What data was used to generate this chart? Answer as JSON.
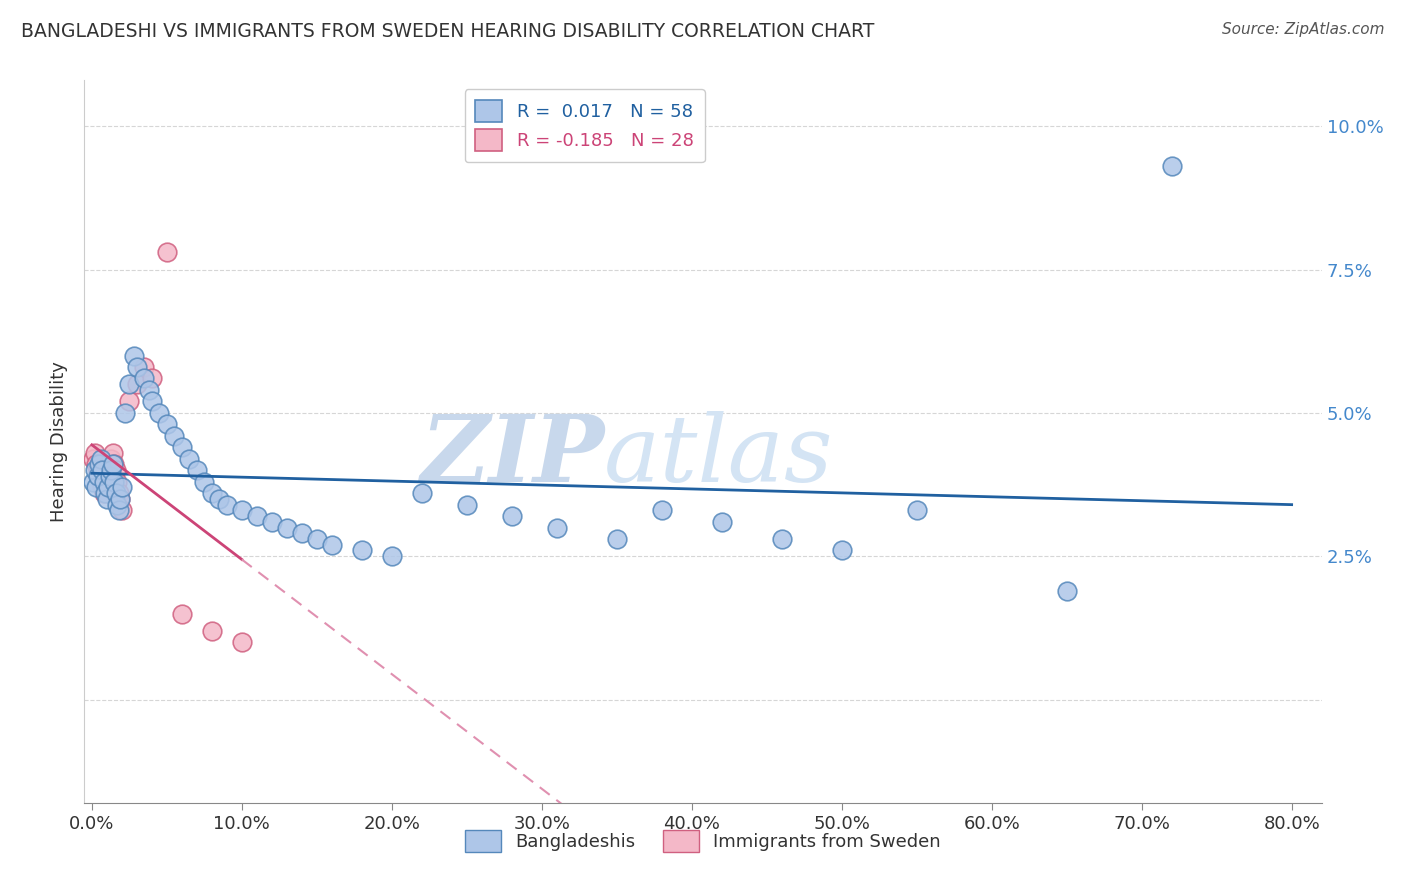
{
  "title": "BANGLADESHI VS IMMIGRANTS FROM SWEDEN HEARING DISABILITY CORRELATION CHART",
  "source": "Source: ZipAtlas.com",
  "ylabel": "Hearing Disability",
  "ytick_vals": [
    0.0,
    0.025,
    0.05,
    0.075,
    0.1
  ],
  "ytick_labels": [
    "",
    "2.5%",
    "5.0%",
    "7.5%",
    "10.0%"
  ],
  "xtick_vals": [
    0.0,
    0.1,
    0.2,
    0.3,
    0.4,
    0.5,
    0.6,
    0.7,
    0.8
  ],
  "xtick_labels": [
    "0.0%",
    "10.0%",
    "20.0%",
    "30.0%",
    "40.0%",
    "50.0%",
    "60.0%",
    "70.0%",
    "80.0%"
  ],
  "xlim": [
    -0.005,
    0.82
  ],
  "ylim": [
    -0.018,
    0.108
  ],
  "blue_color": "#aec6e8",
  "pink_color": "#f4b8c8",
  "blue_edge_color": "#5588bb",
  "pink_edge_color": "#d06080",
  "blue_line_color": "#2060a0",
  "pink_line_solid_color": "#cc4477",
  "pink_line_dash_color": "#e090b0",
  "watermark_zip": "ZIP",
  "watermark_atlas": "atlas",
  "watermark_color": "#dce8f5",
  "background_color": "#ffffff",
  "blue_scatter_x": [
    0.001,
    0.002,
    0.003,
    0.004,
    0.005,
    0.006,
    0.007,
    0.008,
    0.009,
    0.01,
    0.011,
    0.012,
    0.013,
    0.014,
    0.015,
    0.016,
    0.017,
    0.018,
    0.019,
    0.02,
    0.022,
    0.025,
    0.028,
    0.03,
    0.035,
    0.038,
    0.04,
    0.045,
    0.05,
    0.055,
    0.06,
    0.065,
    0.07,
    0.075,
    0.08,
    0.085,
    0.09,
    0.1,
    0.11,
    0.12,
    0.13,
    0.14,
    0.15,
    0.16,
    0.18,
    0.2,
    0.22,
    0.25,
    0.28,
    0.31,
    0.35,
    0.38,
    0.42,
    0.46,
    0.5,
    0.55,
    0.65,
    0.72
  ],
  "blue_scatter_y": [
    0.038,
    0.04,
    0.037,
    0.039,
    0.041,
    0.042,
    0.04,
    0.038,
    0.036,
    0.035,
    0.037,
    0.039,
    0.04,
    0.041,
    0.038,
    0.036,
    0.034,
    0.033,
    0.035,
    0.037,
    0.05,
    0.055,
    0.06,
    0.058,
    0.056,
    0.054,
    0.052,
    0.05,
    0.048,
    0.046,
    0.044,
    0.042,
    0.04,
    0.038,
    0.036,
    0.035,
    0.034,
    0.033,
    0.032,
    0.031,
    0.03,
    0.029,
    0.028,
    0.027,
    0.026,
    0.025,
    0.036,
    0.034,
    0.032,
    0.03,
    0.028,
    0.033,
    0.031,
    0.028,
    0.026,
    0.033,
    0.019,
    0.093
  ],
  "pink_scatter_x": [
    0.001,
    0.002,
    0.003,
    0.004,
    0.005,
    0.006,
    0.007,
    0.008,
    0.009,
    0.01,
    0.011,
    0.012,
    0.013,
    0.014,
    0.015,
    0.016,
    0.017,
    0.018,
    0.019,
    0.02,
    0.025,
    0.03,
    0.035,
    0.04,
    0.05,
    0.06,
    0.08,
    0.1
  ],
  "pink_scatter_y": [
    0.042,
    0.043,
    0.041,
    0.04,
    0.039,
    0.038,
    0.037,
    0.036,
    0.038,
    0.039,
    0.04,
    0.041,
    0.042,
    0.043,
    0.041,
    0.04,
    0.038,
    0.036,
    0.035,
    0.033,
    0.052,
    0.055,
    0.058,
    0.056,
    0.078,
    0.015,
    0.012,
    0.01
  ],
  "blue_R": 0.017,
  "blue_N": 58,
  "pink_R": -0.185,
  "pink_N": 28,
  "legend1_text": "R =  0.017   N = 58",
  "legend2_text": "R = -0.185   N = 28",
  "legend1_label": "Bangladeshis",
  "legend2_label": "Immigrants from Sweden"
}
